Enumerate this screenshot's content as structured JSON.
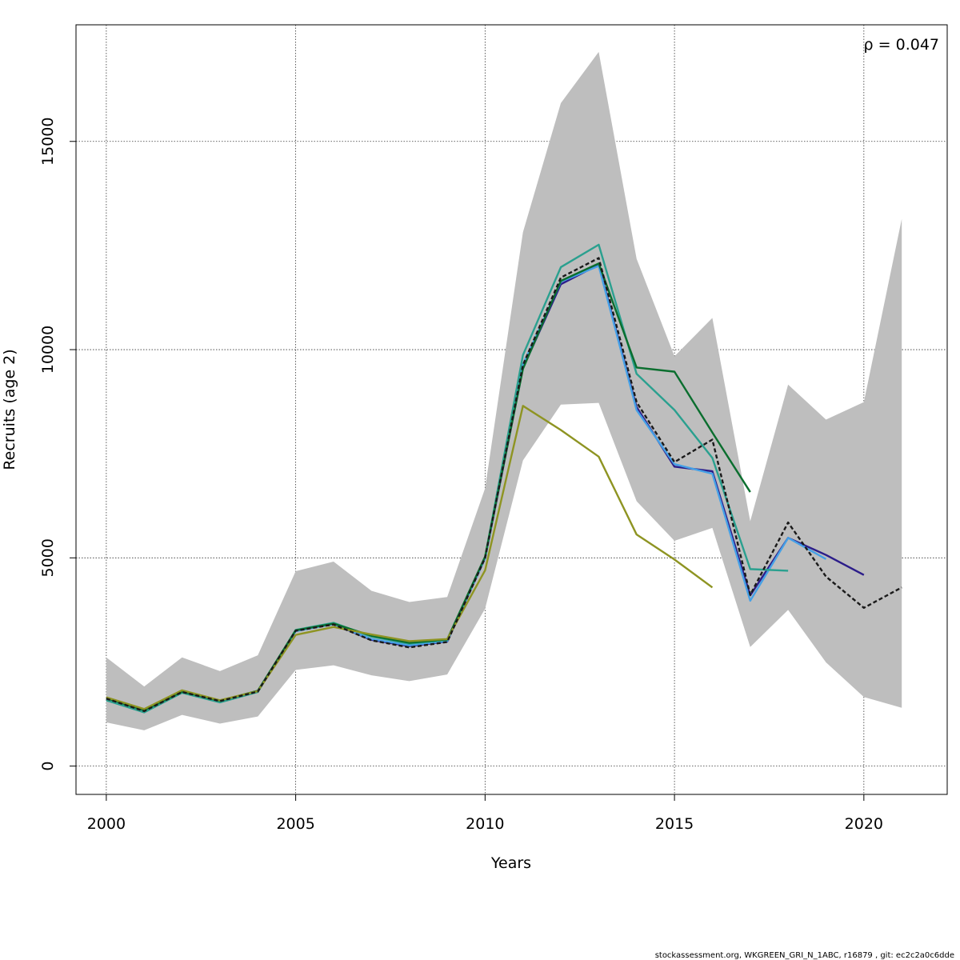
{
  "chart_data": {
    "type": "line",
    "title": "",
    "xlabel": "Years",
    "ylabel": "Recruits (age 2)",
    "xlim": [
      1999.2,
      2022.2
    ],
    "ylim": [
      -680,
      17800
    ],
    "x_ticks": [
      2000,
      2005,
      2010,
      2015,
      2020
    ],
    "x_tick_labels": [
      "2000",
      "2005",
      "2010",
      "2015",
      "2020"
    ],
    "y_ticks": [
      0,
      5000,
      10000,
      15000
    ],
    "y_tick_labels": [
      "0",
      "5000",
      "10000",
      "15000"
    ],
    "grid": true,
    "annotation": "ρ = 0.047",
    "confidence_band": {
      "color": "#bebebe",
      "x": [
        2000,
        2001,
        2002,
        2003,
        2004,
        2005,
        2006,
        2007,
        2008,
        2009,
        2010,
        2011,
        2012,
        2013,
        2014,
        2015,
        2016,
        2017,
        2018,
        2019,
        2020,
        2021
      ],
      "lower": [
        1050,
        860,
        1230,
        1020,
        1190,
        2310,
        2420,
        2180,
        2040,
        2200,
        3780,
        7340,
        8680,
        8720,
        6360,
        5410,
        5720,
        2860,
        3750,
        2490,
        1660,
        1400
      ],
      "upper": [
        2610,
        1910,
        2610,
        2280,
        2660,
        4680,
        4910,
        4210,
        3940,
        4060,
        6670,
        12820,
        15920,
        17150,
        12180,
        9840,
        10760,
        5880,
        9160,
        8320,
        8740,
        13140
      ]
    },
    "series": [
      {
        "color": "#1a1a1a",
        "dash": true,
        "x": [
          2000,
          2001,
          2002,
          2003,
          2004,
          2005,
          2006,
          2007,
          2008,
          2009,
          2010,
          2011,
          2012,
          2013,
          2014,
          2015,
          2016,
          2017,
          2018,
          2019,
          2020,
          2021
        ],
        "values": [
          1620,
          1320,
          1780,
          1560,
          1790,
          3250,
          3400,
          3020,
          2850,
          2980,
          5000,
          9630,
          11730,
          12200,
          8740,
          7300,
          7840,
          4110,
          5850,
          4550,
          3800,
          4290
        ]
      },
      {
        "color": "#2c1d8a",
        "dash": false,
        "x": [
          2000,
          2001,
          2002,
          2003,
          2004,
          2005,
          2006,
          2007,
          2008,
          2009,
          2010,
          2011,
          2012,
          2013,
          2014,
          2015,
          2016,
          2017,
          2018,
          2019,
          2020
        ],
        "values": [
          1610,
          1310,
          1780,
          1560,
          1790,
          3250,
          3410,
          3030,
          2880,
          2990,
          4990,
          9560,
          11570,
          12040,
          8620,
          7190,
          7080,
          4100,
          5480,
          5070,
          4590
        ]
      },
      {
        "color": "#45a0e6",
        "dash": false,
        "x": [
          2000,
          2001,
          2002,
          2003,
          2004,
          2005,
          2006,
          2007,
          2008,
          2009,
          2010,
          2011,
          2012,
          2013,
          2014,
          2015,
          2016,
          2017,
          2018,
          2019
        ],
        "values": [
          1610,
          1310,
          1770,
          1560,
          1790,
          3240,
          3410,
          3050,
          2900,
          3000,
          4990,
          9640,
          11630,
          12010,
          8550,
          7250,
          7020,
          3970,
          5480,
          4970
        ]
      },
      {
        "color": "#2aa08f",
        "dash": false,
        "x": [
          2000,
          2001,
          2002,
          2003,
          2004,
          2005,
          2006,
          2007,
          2008,
          2009,
          2010,
          2011,
          2012,
          2013,
          2014,
          2015,
          2016,
          2017,
          2018
        ],
        "values": [
          1580,
          1290,
          1760,
          1530,
          1780,
          3270,
          3440,
          3110,
          2940,
          3030,
          5020,
          9870,
          11980,
          12520,
          9420,
          8550,
          7400,
          4730,
          4690
        ]
      },
      {
        "color": "#0a6e2e",
        "dash": false,
        "x": [
          2000,
          2001,
          2002,
          2003,
          2004,
          2005,
          2006,
          2007,
          2008,
          2009,
          2010,
          2011,
          2012,
          2013,
          2014,
          2015,
          2016,
          2017
        ],
        "values": [
          1630,
          1340,
          1790,
          1570,
          1810,
          3260,
          3420,
          3130,
          2960,
          3040,
          5030,
          9540,
          11650,
          12070,
          9570,
          9470,
          8010,
          6580
        ]
      },
      {
        "color": "#8e9422",
        "dash": false,
        "x": [
          2000,
          2001,
          2002,
          2003,
          2004,
          2005,
          2006,
          2007,
          2008,
          2009,
          2010,
          2011,
          2012,
          2013,
          2014,
          2015,
          2016
        ],
        "values": [
          1650,
          1370,
          1820,
          1580,
          1800,
          3150,
          3340,
          3160,
          3000,
          3050,
          4700,
          8650,
          8070,
          7430,
          5560,
          4960,
          4290
        ]
      }
    ]
  },
  "footer": "stockassessment.org, WKGREEN_GRI_N_1ABC, r16879 , git: ec2c2a0c6dde"
}
